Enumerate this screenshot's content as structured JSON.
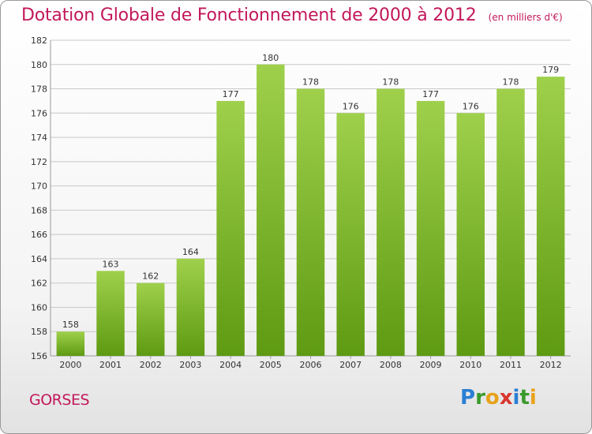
{
  "title": "Dotation Globale de Fonctionnement de 2000 à 2012",
  "subtitle": "(en milliers d'€)",
  "commune": "GORSES",
  "logo": {
    "letters": [
      "P",
      "r",
      "o",
      "x",
      "i",
      "t",
      "i"
    ],
    "colors": [
      "#2a7fd4",
      "#3a9a2c",
      "#e8a21a",
      "#d8362f",
      "#2a7fd4",
      "#3a9a2c",
      "#e8a21a"
    ]
  },
  "colors": {
    "bar_top": "#9fd04c",
    "bar_bottom": "#5e9a12",
    "grid": "#c8c8c8",
    "accent": "#c2185b"
  },
  "chart_data": {
    "type": "bar",
    "title": "Dotation Globale de Fonctionnement de 2000 à 2012",
    "subtitle": "(en milliers d'€)",
    "categories": [
      "2000",
      "2001",
      "2002",
      "2003",
      "2004",
      "2005",
      "2006",
      "2007",
      "2008",
      "2009",
      "2010",
      "2011",
      "2012"
    ],
    "values": [
      158,
      163,
      162,
      164,
      177,
      180,
      178,
      176,
      178,
      177,
      176,
      178,
      179
    ],
    "ylim": [
      156,
      182
    ],
    "yticks": [
      156,
      158,
      160,
      162,
      164,
      166,
      168,
      170,
      172,
      174,
      176,
      178,
      180,
      182
    ],
    "grid": true,
    "data_labels": true
  }
}
